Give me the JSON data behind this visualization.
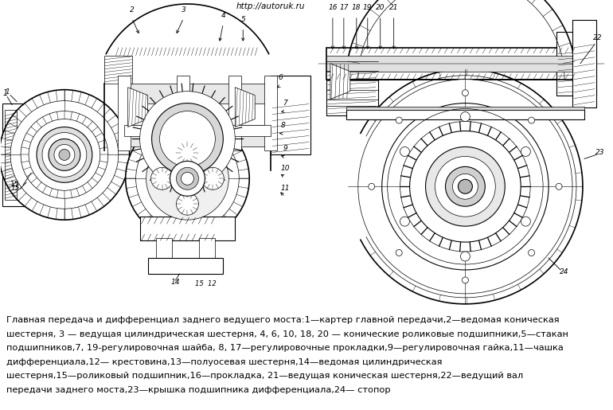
{
  "background_color": "#ffffff",
  "url_text": "http://autoruk.ru",
  "caption_lines": [
    "Главная передача и дифференциал заднего ведущего моста:1—картер главной передачи,2—ведомая коническая",
    "шестерня, 3 — ведущая цилиндрическая шестерня, 4, 6, 10, 18, 20 — конические роликовые подшипники,5—стакан",
    "подшипников,7, 19-регулировочная шайба, 8, 17—регулировочные прокладки,9—регулировочная гайка,11—чашка",
    "дифференциала,12— крестовина,13—полуосевая шестерня,14—ведомая цилиндрическая",
    "шестерня,15—роликовый подшипник,16—прокладка, 21—ведущая коническая шестерня,22—ведущий вал",
    "передачи заднего моста,23—крышка подшипника дифференциала,24— стопор"
  ],
  "caption_fontsize": 8.2,
  "fig_width": 7.7,
  "fig_height": 5.15,
  "dpi": 100
}
